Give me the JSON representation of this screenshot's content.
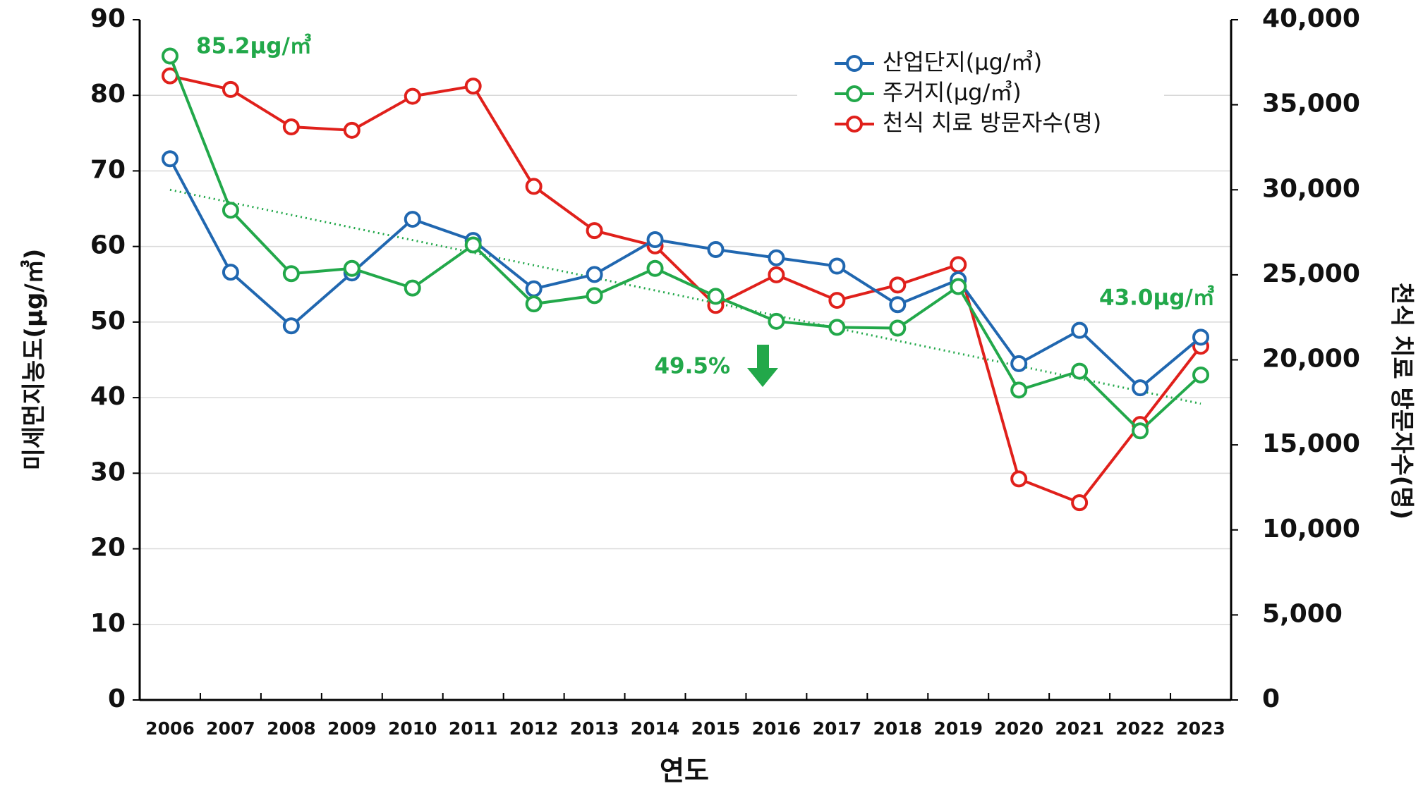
{
  "chart_data": {
    "type": "line",
    "categories": [
      "2006",
      "2007",
      "2008",
      "2009",
      "2010",
      "2011",
      "2012",
      "2013",
      "2014",
      "2015",
      "2016",
      "2017",
      "2018",
      "2019",
      "2020",
      "2021",
      "2022",
      "2023"
    ],
    "series": [
      {
        "name": "산업단지(μg/㎥)",
        "color": "#2067b0",
        "values": [
          71.6,
          56.6,
          49.5,
          56.5,
          63.6,
          60.8,
          54.4,
          56.3,
          60.9,
          59.6,
          58.5,
          57.4,
          52.3,
          55.6,
          44.5,
          48.9,
          41.3,
          48.0
        ]
      },
      {
        "name": "주거지(μg/㎥)",
        "color": "#22a84a",
        "values": [
          85.2,
          64.8,
          56.4,
          57.1,
          54.5,
          60.2,
          52.4,
          53.5,
          57.1,
          53.4,
          50.1,
          49.3,
          49.2,
          54.7,
          41.0,
          43.5,
          35.6,
          43.0
        ]
      },
      {
        "name": "천식 치료 방문자수(명)",
        "color": "#e0201b",
        "axis": "y2",
        "values": [
          36700,
          35900,
          33700,
          33500,
          35500,
          36100,
          30200,
          27600,
          26700,
          23200,
          25000,
          23500,
          24400,
          25600,
          13000,
          11600,
          16200,
          20800
        ]
      }
    ],
    "trend": {
      "color": "#22a84a",
      "start": 67.5,
      "end": 39.2
    },
    "ylim": [
      0,
      90
    ],
    "yticks": [
      0,
      10,
      20,
      30,
      40,
      50,
      60,
      70,
      80,
      90
    ],
    "y2lim": [
      0,
      40000
    ],
    "y2ticks": [
      0,
      {
        "value": 5000,
        "label": "5,000"
      },
      {
        "value": 10000,
        "label": "10,000"
      },
      {
        "value": 15000,
        "label": "15,000"
      },
      {
        "value": 20000,
        "label": "20,000"
      },
      {
        "value": 25000,
        "label": "25,000"
      },
      {
        "value": 30000,
        "label": "30,000"
      },
      {
        "value": 35000,
        "label": "35,000"
      },
      {
        "value": 40000,
        "label": "40,000"
      }
    ],
    "xlabel": "연도",
    "ylabel": "미세먼지농도(μg/㎥)",
    "y2label": "천식 치료 방문자수(명)",
    "annotations": [
      "85.2μg/㎥",
      "43.0μg/㎥",
      "49.5%"
    ],
    "grid": true,
    "legend": "upper right"
  }
}
